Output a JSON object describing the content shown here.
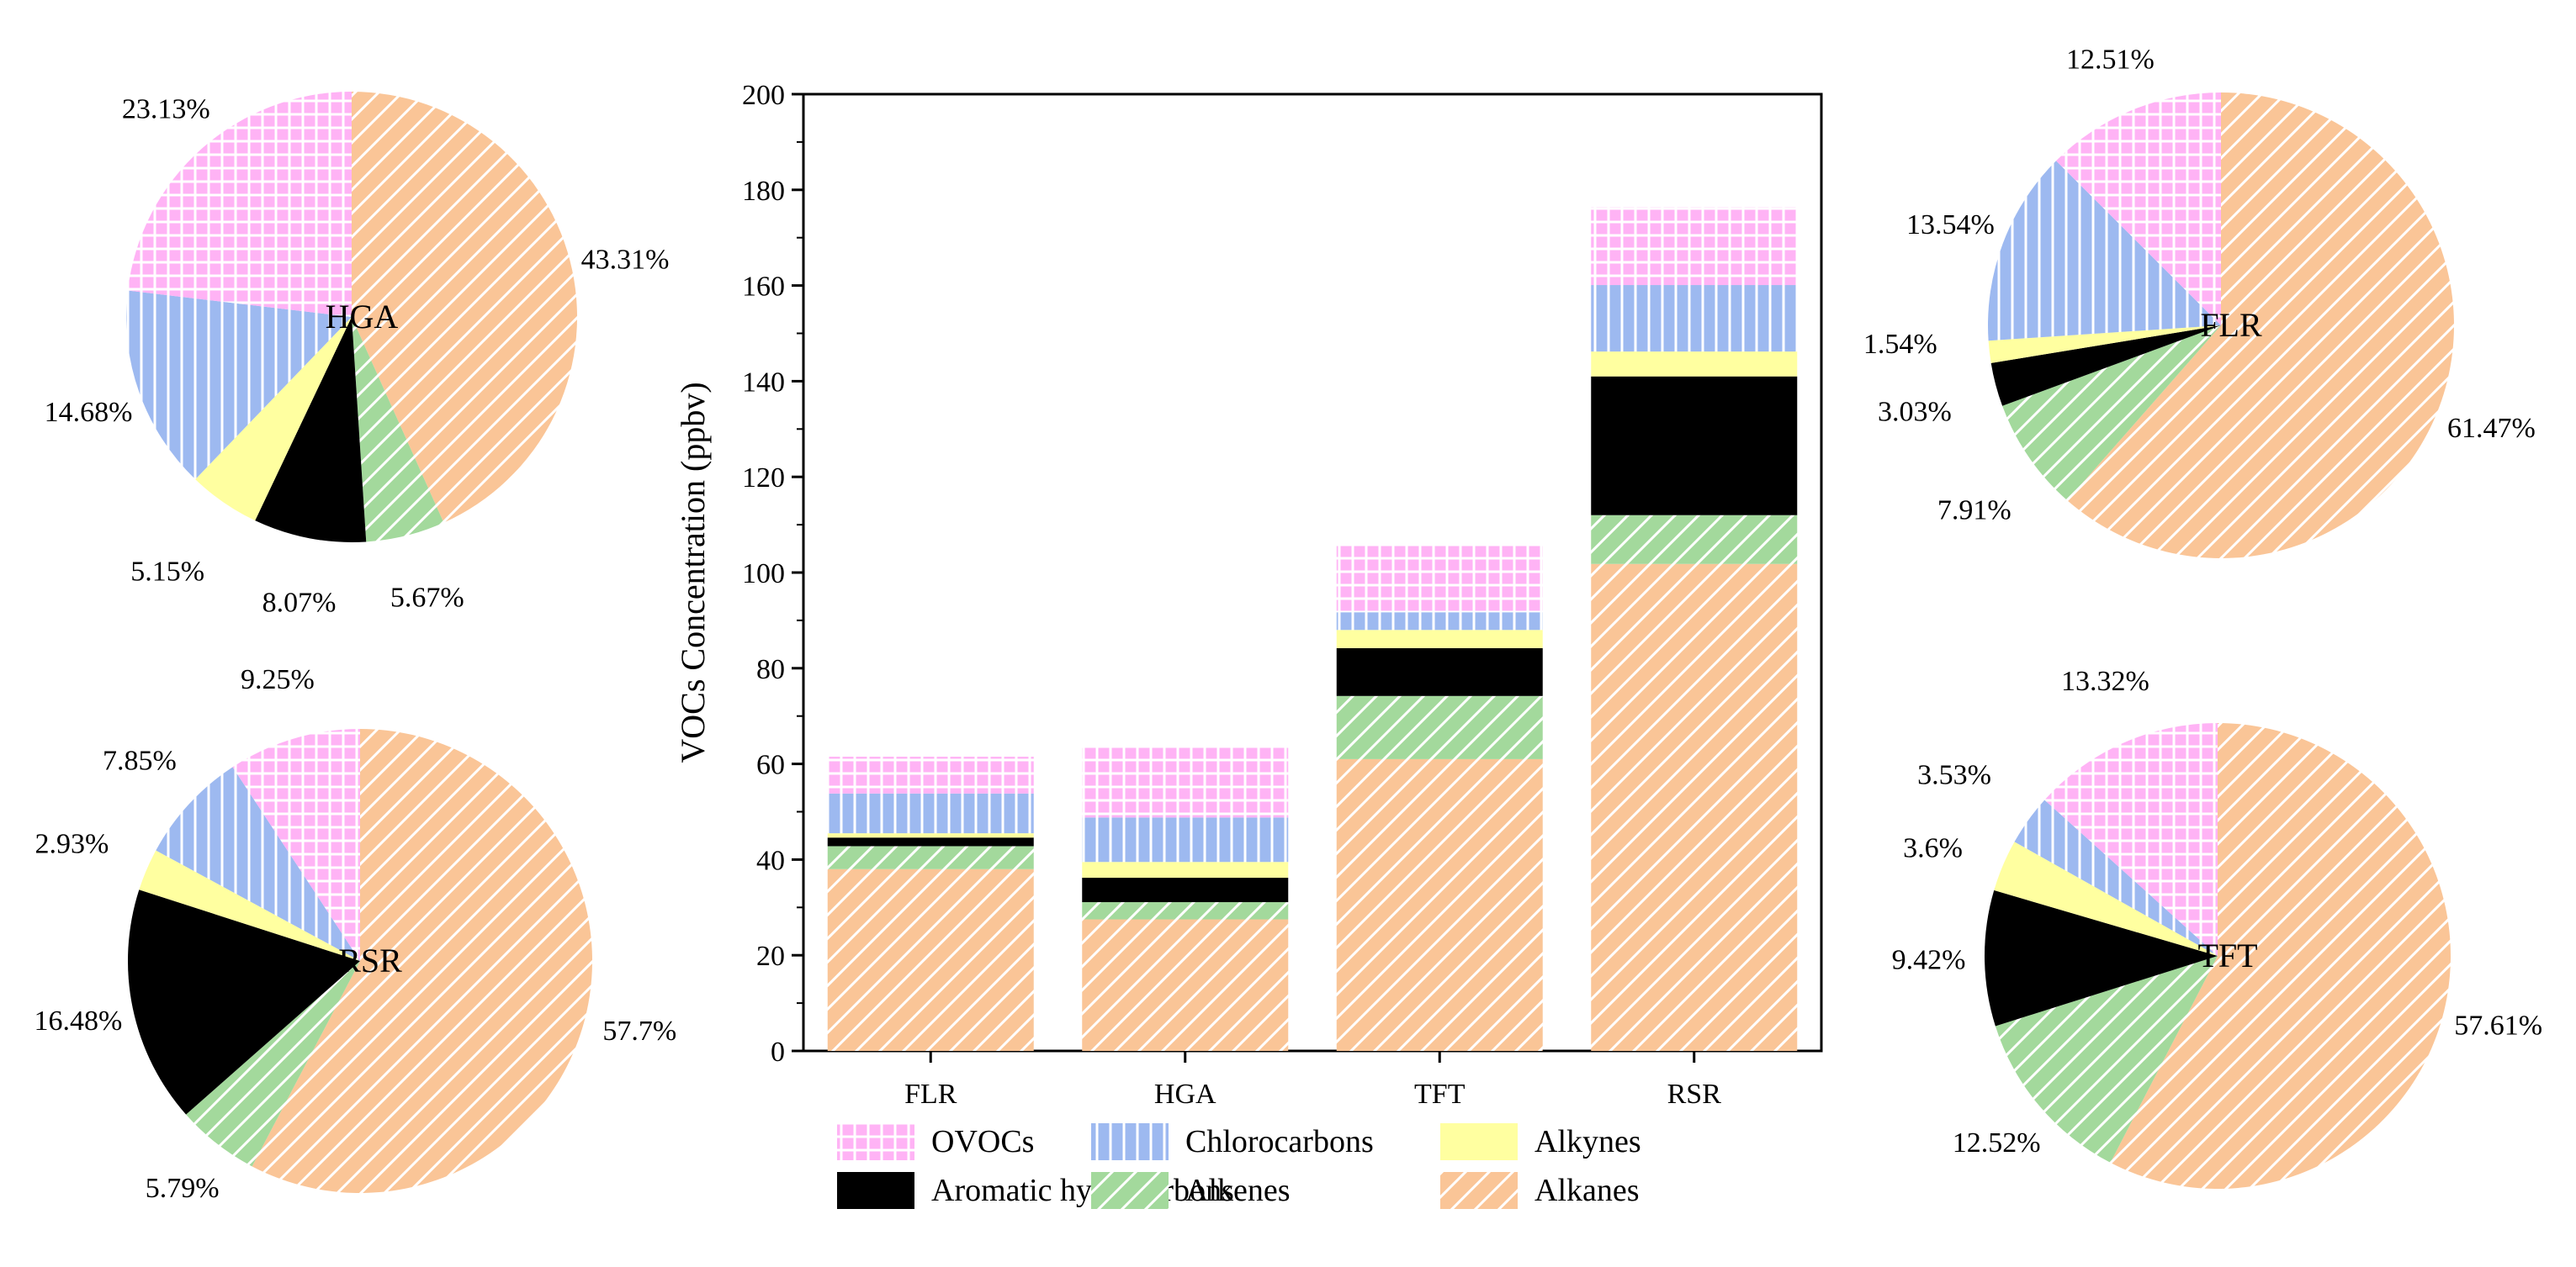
{
  "categories_order": [
    "OVOCs",
    "Chlorocarbons",
    "Alkynes",
    "Aromatic hydrocarbons",
    "Alkenes",
    "Alkanes"
  ],
  "colors": {
    "OVOCs": "#FFB3F5",
    "Chlorocarbons": "#9DB9F0",
    "Alkynes": "#FFFFA0",
    "Aromatic hydrocarbons": "#C3AED8",
    "Alkenes": "#A3D99C",
    "Alkanes": "#FAC597"
  },
  "chart_data": [
    {
      "type": "bar",
      "stacked": true,
      "title": "",
      "xlabel": "",
      "ylabel": "VOCs Concentration (ppbv)",
      "ylim": [
        0,
        200
      ],
      "yticks": [
        "0",
        "20",
        "40",
        "60",
        "80",
        "100",
        "120",
        "140",
        "160",
        "180",
        "200"
      ],
      "categories": [
        "FLR",
        "HGA",
        "TFT",
        "RSR"
      ],
      "series": [
        {
          "name": "Alkanes",
          "values": [
            38.0,
            27.5,
            61.0,
            101.8
          ]
        },
        {
          "name": "Alkenes",
          "values": [
            4.8,
            3.6,
            13.2,
            10.2
          ]
        },
        {
          "name": "Aromatic hydrocarbons",
          "values": [
            1.8,
            5.1,
            10.0,
            29.0
          ]
        },
        {
          "name": "Alkynes",
          "values": [
            0.9,
            3.3,
            3.8,
            5.2
          ]
        },
        {
          "name": "Chlorocarbons",
          "values": [
            8.3,
            9.3,
            3.7,
            13.9
          ]
        },
        {
          "name": "OVOCs",
          "values": [
            7.7,
            14.7,
            14.1,
            16.3
          ]
        }
      ],
      "legend": [
        "OVOCs",
        "Chlorocarbons",
        "Alkynes",
        "Aromatic hydrocarbons",
        "Alkenes",
        "Alkanes"
      ]
    },
    {
      "type": "pie",
      "title": "HGA",
      "slices": [
        {
          "category": "Alkanes",
          "value": 43.31,
          "label": "43.31%"
        },
        {
          "category": "Alkenes",
          "value": 5.67,
          "label": "5.67%"
        },
        {
          "category": "Aromatic hydrocarbons",
          "value": 8.07,
          "label": "8.07%"
        },
        {
          "category": "Alkynes",
          "value": 5.15,
          "label": "5.15%"
        },
        {
          "category": "Chlorocarbons",
          "value": 14.68,
          "label": "14.68%"
        },
        {
          "category": "OVOCs",
          "value": 23.13,
          "label": "23.13%"
        }
      ]
    },
    {
      "type": "pie",
      "title": "RSR",
      "slices": [
        {
          "category": "Alkanes",
          "value": 57.7,
          "label": "57.7%"
        },
        {
          "category": "Alkenes",
          "value": 5.79,
          "label": "5.79%"
        },
        {
          "category": "Aromatic hydrocarbons",
          "value": 16.48,
          "label": "16.48%"
        },
        {
          "category": "Alkynes",
          "value": 2.93,
          "label": "2.93%"
        },
        {
          "category": "Chlorocarbons",
          "value": 7.85,
          "label": "7.85%"
        },
        {
          "category": "OVOCs",
          "value": 9.25,
          "label": "9.25%"
        }
      ]
    },
    {
      "type": "pie",
      "title": "FLR",
      "slices": [
        {
          "category": "Alkanes",
          "value": 61.47,
          "label": "61.47%"
        },
        {
          "category": "Alkenes",
          "value": 7.91,
          "label": "7.91%"
        },
        {
          "category": "Aromatic hydrocarbons",
          "value": 3.03,
          "label": "3.03%"
        },
        {
          "category": "Alkynes",
          "value": 1.54,
          "label": "1.54%"
        },
        {
          "category": "Chlorocarbons",
          "value": 13.54,
          "label": "13.54%"
        },
        {
          "category": "OVOCs",
          "value": 12.51,
          "label": "12.51%"
        }
      ]
    },
    {
      "type": "pie",
      "title": "TFT",
      "slices": [
        {
          "category": "Alkanes",
          "value": 57.61,
          "label": "57.61%"
        },
        {
          "category": "Alkenes",
          "value": 12.52,
          "label": "12.52%"
        },
        {
          "category": "Aromatic hydrocarbons",
          "value": 9.42,
          "label": "9.42%"
        },
        {
          "category": "Alkynes",
          "value": 3.6,
          "label": "3.6%"
        },
        {
          "category": "Chlorocarbons",
          "value": 3.53,
          "label": "3.53%"
        },
        {
          "category": "OVOCs",
          "value": 13.32,
          "label": "13.32%"
        }
      ]
    }
  ]
}
